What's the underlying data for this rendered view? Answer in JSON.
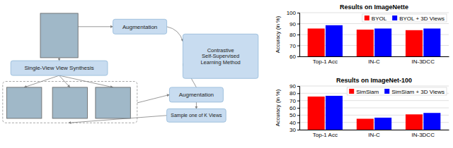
{
  "chart_data": [
    {
      "type": "bar",
      "title": "Results on ImageNette",
      "categories": [
        "Top-1 Acc",
        "IN-C",
        "IN-3DCC"
      ],
      "series": [
        {
          "name": "BYOL",
          "color": "#FF0000",
          "values": [
            85.5,
            84.5,
            84.0
          ]
        },
        {
          "name": "BYOL + 3D Views",
          "color": "#0000FF",
          "values": [
            88.5,
            85.5,
            85.5
          ]
        }
      ],
      "ylabel": "Accuracy (in %)",
      "ylim": [
        60,
        100
      ],
      "yticks": [
        60,
        70,
        80,
        90,
        100
      ],
      "grid": true,
      "legend": "upper right",
      "annotations": [
        "Augmentation",
        "Single-View View Synthesis",
        "Contrastive\nSelf-Supervised\nLearning Method",
        "Augmentation",
        "Sample one of K Views"
      ]
    },
    {
      "type": "bar",
      "title": "Results on ImageNet-100",
      "categories": [
        "Top-1 Acc",
        "IN-C",
        "IN-3DCC"
      ],
      "series": [
        {
          "name": "SimSiam",
          "color": "#FF0000",
          "values": [
            75.5,
            45.0,
            51.0
          ]
        },
        {
          "name": "SimSiam + 3D Views",
          "color": "#0000FF",
          "values": [
            76.5,
            46.5,
            53.0
          ]
        }
      ],
      "ylabel": "Accuracy (in %)",
      "ylim": [
        30,
        90
      ],
      "yticks": [
        30,
        40,
        50,
        60,
        70,
        80,
        90
      ],
      "grid": true,
      "legend": "upper right"
    }
  ]
}
